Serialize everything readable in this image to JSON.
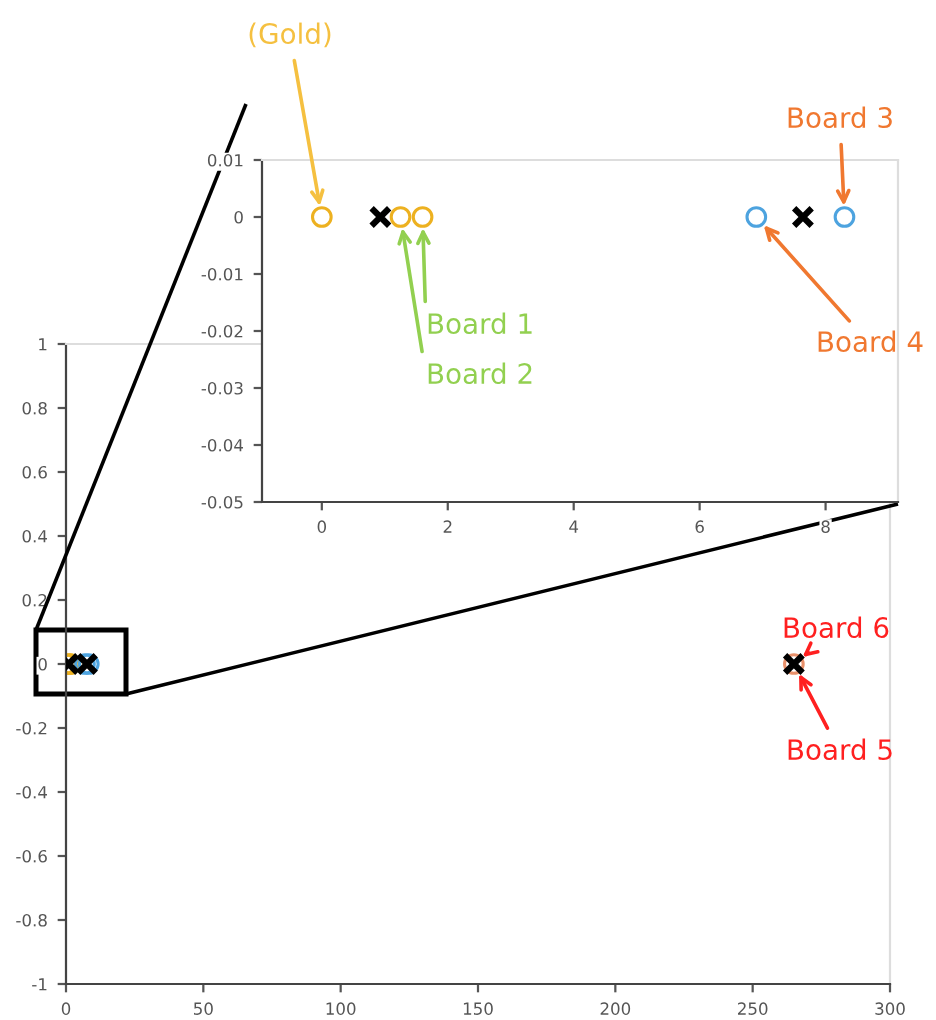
{
  "chart_data": [
    {
      "type": "scatter",
      "xlim": [
        0,
        300
      ],
      "ylim": [
        -1,
        1
      ],
      "xticks": [
        0,
        50,
        100,
        150,
        200,
        250,
        300
      ],
      "yticks": [
        -1,
        -0.8,
        -0.6,
        -0.4,
        -0.2,
        0,
        0.2,
        0.4,
        0.6,
        0.8,
        1
      ],
      "grid": false,
      "legend": false,
      "series": [
        {
          "color": "#edb120",
          "marker": "circle",
          "x": [
            0,
            1.25,
            1.6
          ],
          "values": [
            0,
            0,
            0
          ]
        },
        {
          "color": "#4da3df",
          "marker": "circle",
          "x": [
            6.9,
            8.3
          ],
          "values": [
            0,
            0
          ]
        },
        {
          "color": "#e8906a",
          "marker": "circle",
          "x": [
            265
          ],
          "values": [
            0
          ]
        },
        {
          "color": "#000000",
          "marker": "cross",
          "x": [
            0.93,
            7.64,
            265
          ],
          "values": [
            0,
            0,
            0
          ]
        }
      ],
      "annotations": [
        {
          "text": "Board 6",
          "x": 265,
          "y": 0
        },
        {
          "text": "Board 5",
          "x": 265,
          "y": 0
        }
      ]
    },
    {
      "type": "scatter",
      "xlim": [
        -0.95,
        9.15
      ],
      "ylim": [
        -0.05,
        0.01
      ],
      "xticks": [
        0,
        2,
        4,
        6,
        8
      ],
      "yticks": [
        -0.05,
        -0.04,
        -0.03,
        -0.02,
        -0.01,
        0,
        0.01
      ],
      "grid": false,
      "legend": false,
      "series": [
        {
          "color": "#edb120",
          "marker": "circle",
          "x": [
            0,
            1.25,
            1.6
          ],
          "values": [
            0,
            0,
            0
          ]
        },
        {
          "color": "#4da3df",
          "marker": "circle",
          "x": [
            6.9,
            8.3
          ],
          "values": [
            0,
            0
          ]
        },
        {
          "color": "#000000",
          "marker": "cross",
          "x": [
            0.93,
            7.64
          ],
          "values": [
            0,
            0
          ]
        }
      ],
      "annotations": [
        {
          "text": "(Gold)",
          "x": 0,
          "y": 0
        },
        {
          "text": "Board 1",
          "x": 1.6,
          "y": 0
        },
        {
          "text": "Board 2",
          "x": 1.25,
          "y": 0
        },
        {
          "text": "Board 3",
          "x": 8.3,
          "y": 0
        },
        {
          "text": "Board 4",
          "x": 6.9,
          "y": 0
        }
      ]
    }
  ]
}
